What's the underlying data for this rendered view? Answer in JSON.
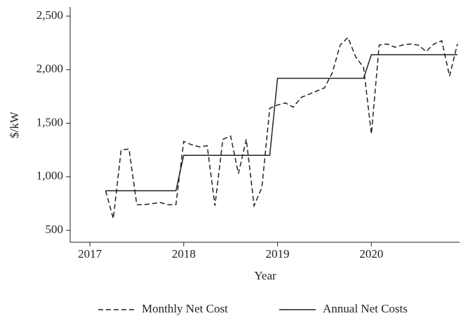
{
  "chart_data": {
    "type": "line",
    "xlabel": "Year",
    "ylabel": "$/kW",
    "xlim": [
      2016.79,
      2020.94
    ],
    "xticks": [
      2017,
      2018,
      2019,
      2020
    ],
    "ylim": [
      389,
      2585
    ],
    "yticks": [
      {
        "value": 500,
        "label": "500"
      },
      {
        "value": 1000,
        "label": "1,000"
      },
      {
        "value": 1500,
        "label": "1,500"
      },
      {
        "value": 2000,
        "label": "2,000"
      },
      {
        "value": 2500,
        "label": "2,500"
      }
    ],
    "legend": "bottom",
    "series": [
      {
        "name": "Monthly Net Cost",
        "color": "#222222",
        "dash": "dashed",
        "x": [
          2017.167,
          2017.25,
          2017.333,
          2017.417,
          2017.5,
          2017.583,
          2017.667,
          2017.75,
          2017.833,
          2017.917,
          2018.0,
          2018.083,
          2018.167,
          2018.25,
          2018.333,
          2018.417,
          2018.5,
          2018.583,
          2018.667,
          2018.75,
          2018.833,
          2018.917,
          2019.0,
          2019.083,
          2019.167,
          2019.25,
          2019.333,
          2019.417,
          2019.5,
          2019.583,
          2019.667,
          2019.75,
          2019.833,
          2019.917,
          2020.0,
          2020.083,
          2020.167,
          2020.25,
          2020.333,
          2020.417,
          2020.5,
          2020.583,
          2020.667,
          2020.75,
          2020.833,
          2020.917
        ],
        "values": [
          870,
          610,
          1250,
          1260,
          740,
          740,
          750,
          760,
          740,
          740,
          1330,
          1300,
          1280,
          1290,
          730,
          1350,
          1380,
          1030,
          1350,
          730,
          900,
          1640,
          1670,
          1690,
          1650,
          1740,
          1770,
          1800,
          1830,
          1970,
          2230,
          2300,
          2120,
          2020,
          1400,
          2230,
          2240,
          2210,
          2230,
          2240,
          2230,
          2170,
          2240,
          2270,
          1940,
          2240
        ]
      },
      {
        "name": "Annual Net Costs",
        "color": "#222222",
        "dash": "solid",
        "x": [
          2017.167,
          2017.917,
          2018.0,
          2018.917,
          2019.0,
          2019.917,
          2020.0,
          2020.917
        ],
        "values": [
          870,
          870,
          1200,
          1200,
          1920,
          1920,
          2140,
          2140
        ]
      }
    ]
  }
}
